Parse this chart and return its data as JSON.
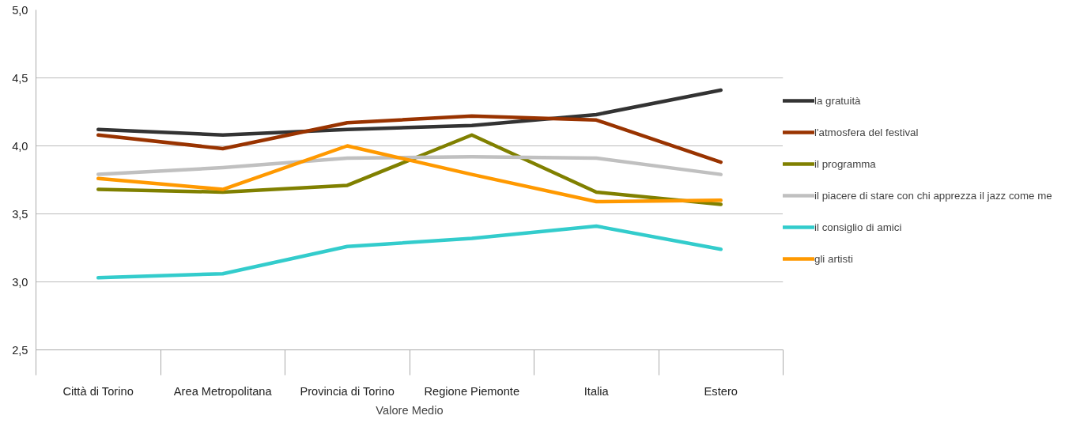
{
  "chart_data": {
    "type": "line",
    "xlabel": "Valore Medio",
    "categories": [
      "Città di Torino",
      "Area Metropolitana",
      "Provincia di Torino",
      "Regione Piemonte",
      "Italia",
      "Estero"
    ],
    "ylim": [
      2.5,
      5.0
    ],
    "yticks": [
      {
        "value": 2.5,
        "label": "2,5"
      },
      {
        "value": 3.0,
        "label": "3,0"
      },
      {
        "value": 3.5,
        "label": "3,5"
      },
      {
        "value": 4.0,
        "label": "4,0"
      },
      {
        "value": 4.5,
        "label": "4,5"
      },
      {
        "value": 5.0,
        "label": "5,0"
      }
    ],
    "grid": "y",
    "legend": "right",
    "line_style": "solid",
    "marker": "none",
    "series": [
      {
        "name": "la gratuità",
        "color": "#333333",
        "values": [
          4.12,
          4.08,
          4.12,
          4.15,
          4.23,
          4.41
        ]
      },
      {
        "name": "l'atmosfera del festival",
        "color": "#993300",
        "values": [
          4.08,
          3.98,
          4.17,
          4.22,
          4.19,
          3.88
        ]
      },
      {
        "name": "il programma",
        "color": "#808000",
        "values": [
          3.68,
          3.66,
          3.71,
          4.08,
          3.66,
          3.57
        ]
      },
      {
        "name": "il piacere di stare con chi apprezza il jazz come me",
        "color": "#c0c0c0",
        "values": [
          3.79,
          3.84,
          3.91,
          3.92,
          3.91,
          3.79
        ]
      },
      {
        "name": "il consiglio di amici",
        "color": "#33cccc",
        "values": [
          3.03,
          3.06,
          3.26,
          3.32,
          3.41,
          3.24
        ]
      },
      {
        "name": "gli artisti",
        "color": "#ff9900",
        "values": [
          3.76,
          3.68,
          4.0,
          3.79,
          3.59,
          3.6
        ]
      }
    ]
  }
}
